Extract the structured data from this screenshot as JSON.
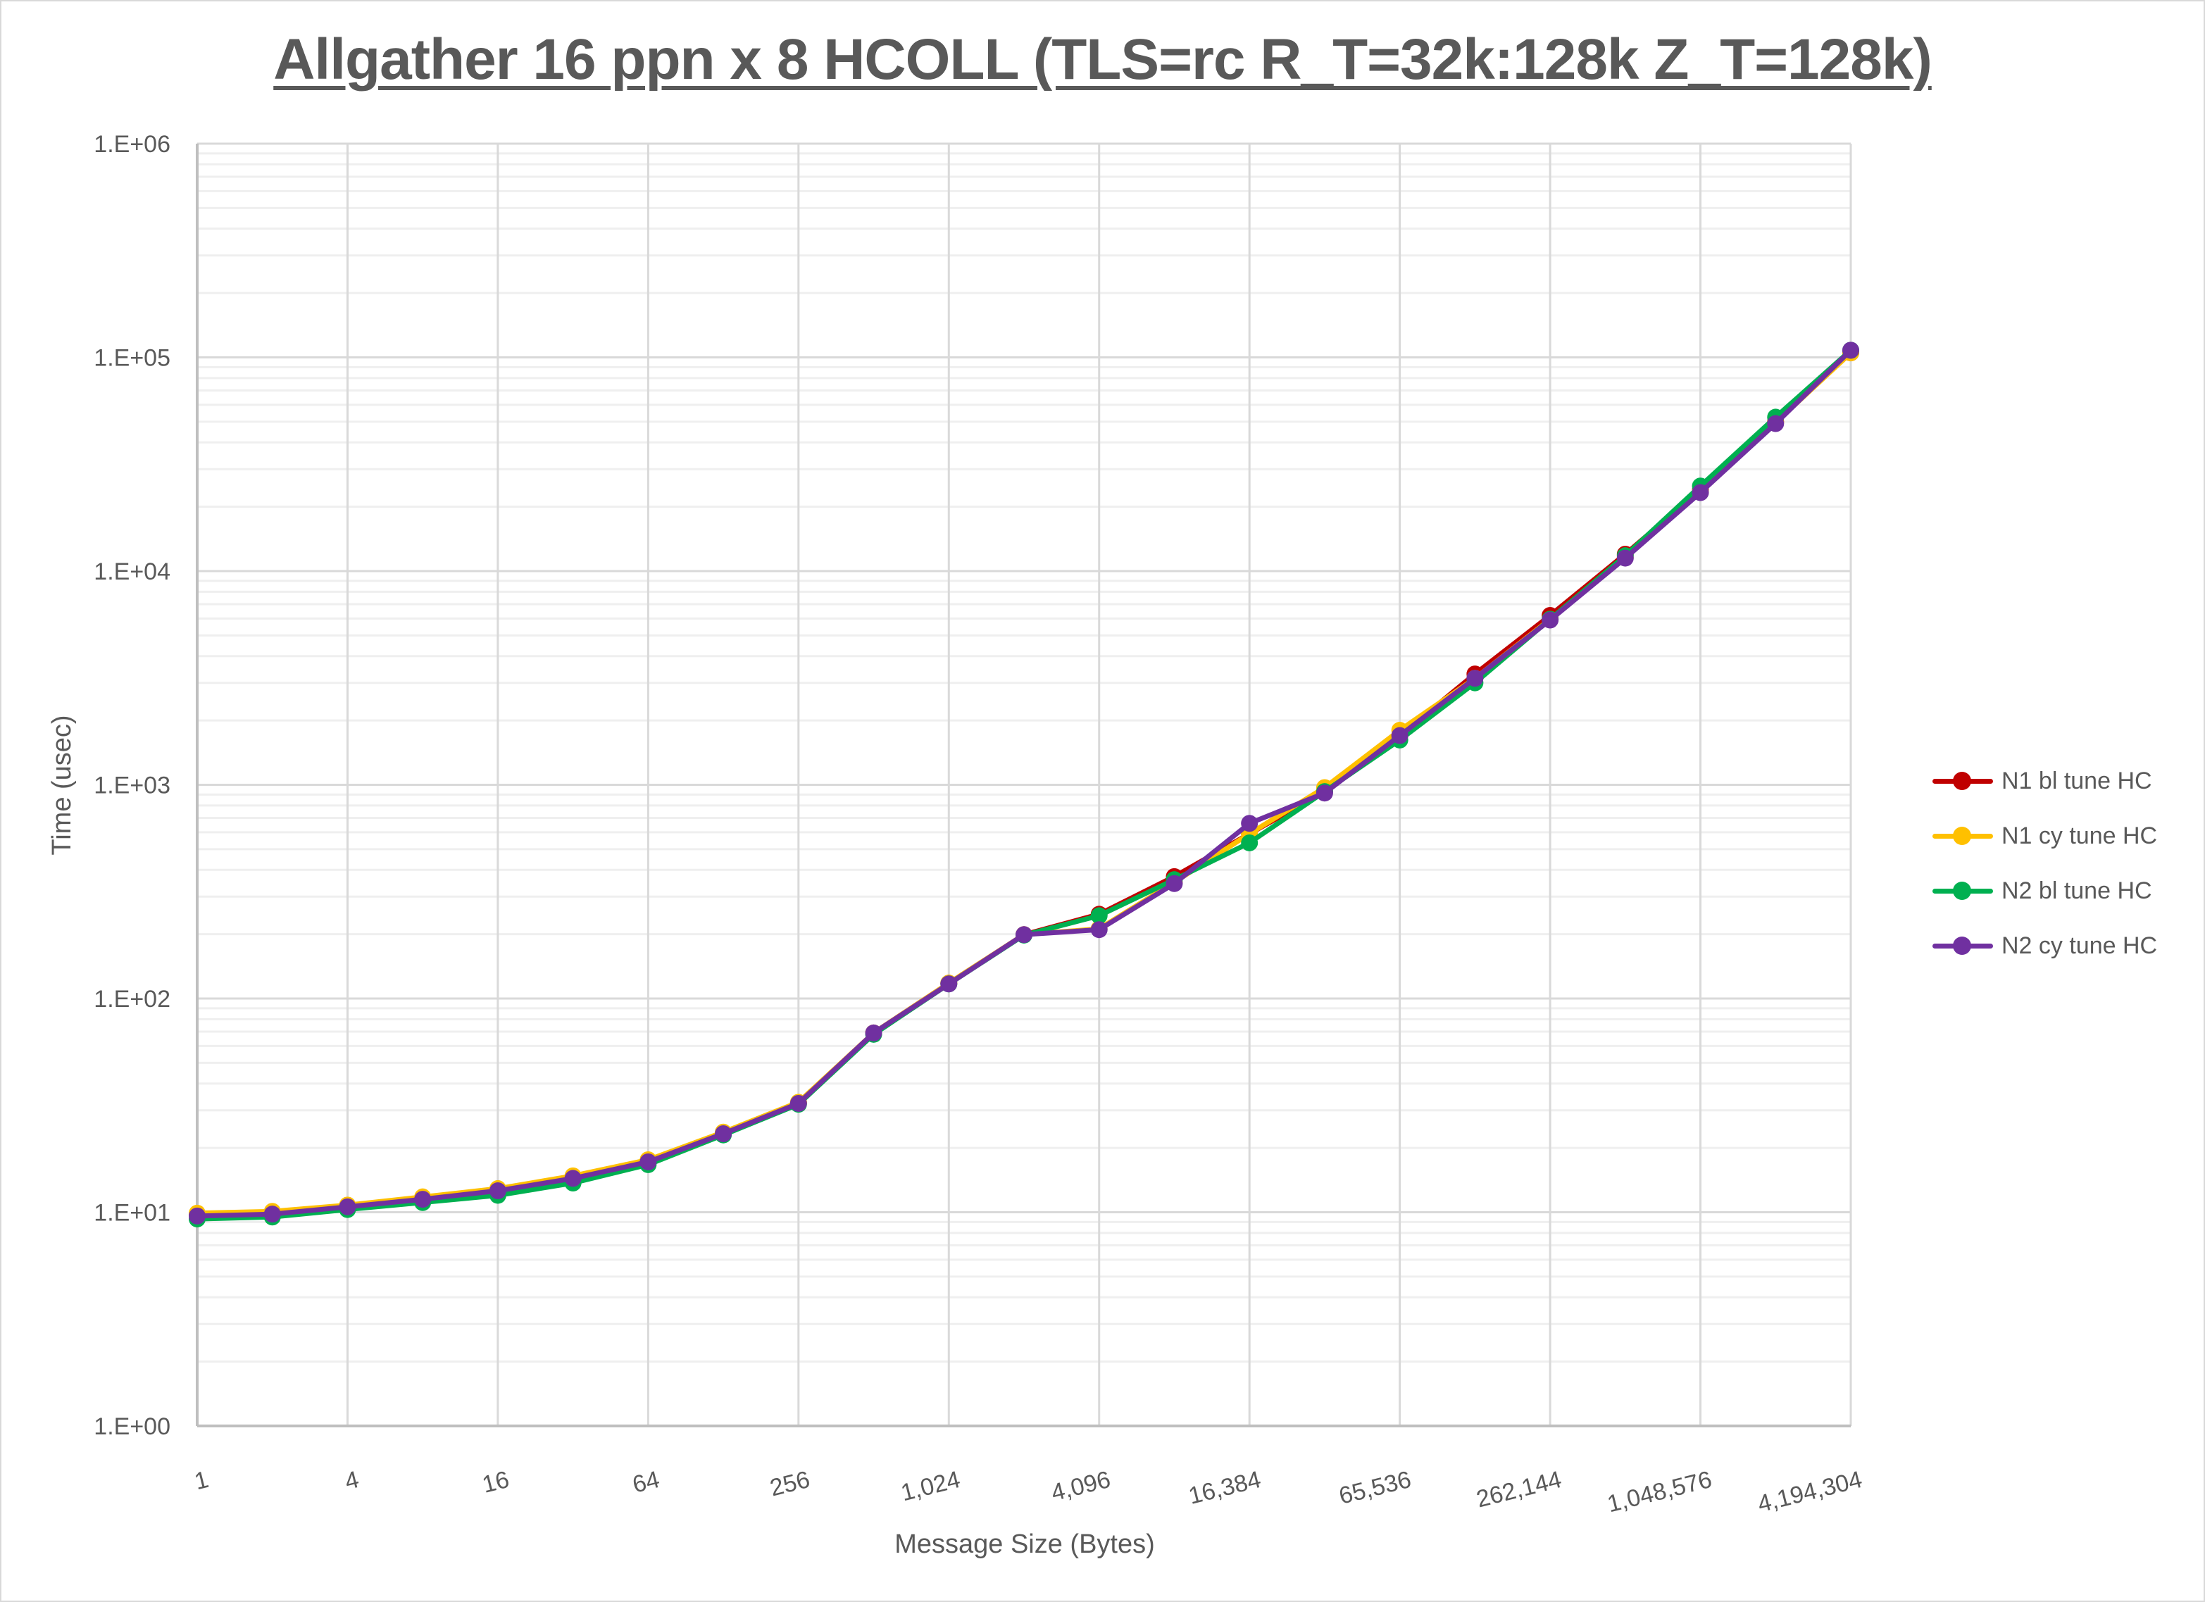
{
  "chart_data": {
    "type": "line",
    "title": "Allgather 16 ppn x 8 HCOLL (TLS=rc R_T=32k:128k Z_T=128k)",
    "xlabel": "Message Size (Bytes)",
    "ylabel": "Time (usec)",
    "yscale": "log",
    "ylim": [
      1,
      1000000
    ],
    "y_tick_labels": [
      "1.E+00",
      "1.E+01",
      "1.E+02",
      "1.E+03",
      "1.E+04",
      "1.E+05",
      "1.E+06"
    ],
    "x_tick_labels": [
      "1",
      "4",
      "16",
      "64",
      "256",
      "1,024",
      "4,096",
      "16,384",
      "65,536",
      "262,144",
      "1,048,576",
      "4,194,304"
    ],
    "x": [
      1,
      2,
      4,
      8,
      16,
      32,
      64,
      128,
      256,
      512,
      1024,
      2048,
      4096,
      8192,
      16384,
      32768,
      65536,
      131072,
      262144,
      524288,
      1048576,
      2097152,
      4194304
    ],
    "grid": {
      "major": true,
      "minor_horizontal": true
    },
    "legend_position": "right",
    "series": [
      {
        "name": "N1 bl tune HC",
        "color": "#C00000",
        "values": [
          9.8,
          10.0,
          10.7,
          11.7,
          12.8,
          14.6,
          17.4,
          23.5,
          32.5,
          69,
          118,
          199,
          248,
          372,
          590,
          930,
          1700,
          3300,
          6200,
          12000,
          24000,
          50000,
          105000
        ]
      },
      {
        "name": "N1 cy tune HC",
        "color": "#FFC000",
        "values": [
          9.9,
          10.1,
          10.8,
          11.8,
          12.9,
          14.8,
          17.6,
          23.7,
          32.7,
          69,
          118,
          199,
          212,
          350,
          590,
          970,
          1800,
          3150,
          5950,
          11600,
          23500,
          49500,
          105000
        ]
      },
      {
        "name": "N2 bl tune HC",
        "color": "#00B050",
        "values": [
          9.3,
          9.5,
          10.3,
          11.1,
          12.0,
          13.7,
          16.7,
          23.0,
          32.0,
          68,
          117,
          198,
          244,
          360,
          535,
          930,
          1620,
          3000,
          5950,
          11800,
          25000,
          52500,
          108000
        ]
      },
      {
        "name": "N2 cy tune HC",
        "color": "#7030A0",
        "values": [
          9.6,
          9.8,
          10.6,
          11.5,
          12.6,
          14.4,
          17.2,
          23.3,
          32.3,
          69,
          117,
          199,
          210,
          345,
          660,
          915,
          1700,
          3150,
          5900,
          11500,
          23300,
          49000,
          108000
        ]
      }
    ]
  }
}
